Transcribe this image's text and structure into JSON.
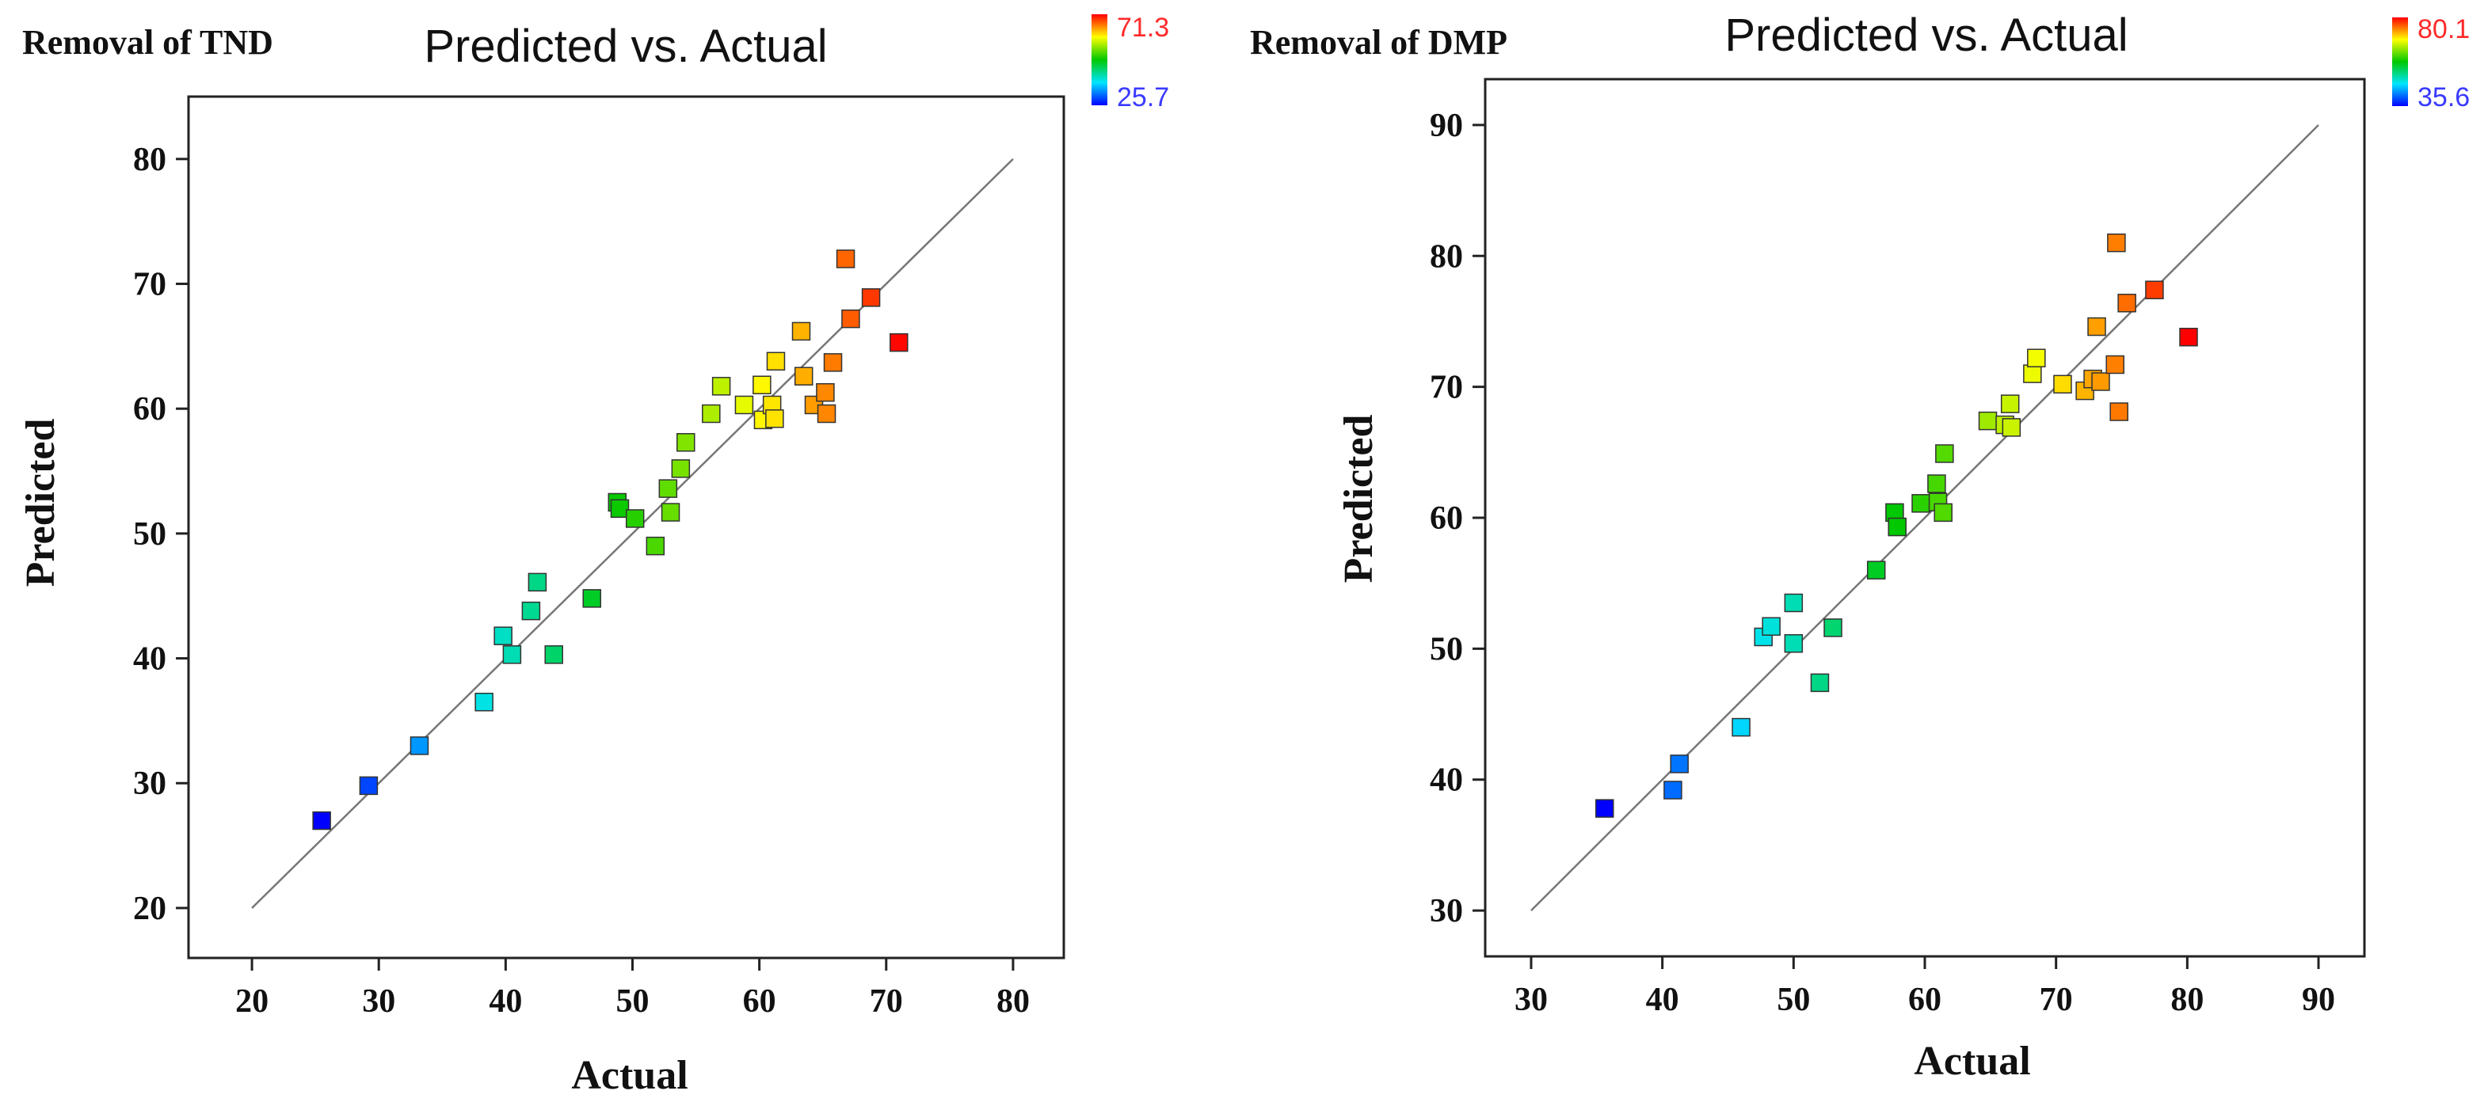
{
  "chart_data": [
    {
      "type": "scatter",
      "corner_label": "Removal of TND",
      "title": "Predicted vs. Actual",
      "xlabel": "Actual",
      "ylabel": "Predicted",
      "xlim": [
        15,
        84
      ],
      "ylim": [
        16,
        85
      ],
      "xticks": [
        20,
        30,
        40,
        50,
        60,
        70,
        80
      ],
      "yticks": [
        20,
        30,
        40,
        50,
        60,
        70,
        80
      ],
      "diagonal": [
        20,
        80
      ],
      "color_scale": {
        "min": 25.7,
        "max": 71.3,
        "min_label": "25.7",
        "max_label": "71.3"
      },
      "points": [
        [
          25.5,
          27
        ],
        [
          29.2,
          29.8
        ],
        [
          33.2,
          33.0
        ],
        [
          38.3,
          36.5
        ],
        [
          40.5,
          40.3
        ],
        [
          39.8,
          41.8
        ],
        [
          42.0,
          43.8
        ],
        [
          42.5,
          46.1
        ],
        [
          43.8,
          40.3
        ],
        [
          46.8,
          44.8
        ],
        [
          48.8,
          52.5
        ],
        [
          49.0,
          52.0
        ],
        [
          50.2,
          51.2
        ],
        [
          51.8,
          49.0
        ],
        [
          52.8,
          53.6
        ],
        [
          53.0,
          51.7
        ],
        [
          53.8,
          55.2
        ],
        [
          54.2,
          57.3
        ],
        [
          56.2,
          59.6
        ],
        [
          57.0,
          61.8
        ],
        [
          58.8,
          60.3
        ],
        [
          60.2,
          61.9
        ],
        [
          60.3,
          59.1
        ],
        [
          61.0,
          60.3
        ],
        [
          61.2,
          59.2
        ],
        [
          61.3,
          63.8
        ],
        [
          63.3,
          66.2
        ],
        [
          63.5,
          62.6
        ],
        [
          64.3,
          60.3
        ],
        [
          65.2,
          61.3
        ],
        [
          65.3,
          59.6
        ],
        [
          65.8,
          63.7
        ],
        [
          66.8,
          72.0
        ],
        [
          67.2,
          67.2
        ],
        [
          68.8,
          68.9
        ],
        [
          71.0,
          65.3
        ]
      ]
    },
    {
      "type": "scatter",
      "corner_label": "Removal of DMP",
      "title": "Predicted vs. Actual",
      "xlabel": "Actual",
      "ylabel": "Predicted",
      "xlim": [
        26.5,
        93.5
      ],
      "ylim": [
        26.5,
        93.5
      ],
      "xticks": [
        30,
        40,
        50,
        60,
        70,
        80,
        90
      ],
      "yticks": [
        30,
        40,
        50,
        60,
        70,
        80,
        90
      ],
      "diagonal": [
        30,
        90
      ],
      "color_scale": {
        "min": 35.6,
        "max": 80.1,
        "min_label": "35.6",
        "max_label": "80.1"
      },
      "points": [
        [
          35.6,
          37.8
        ],
        [
          40.8,
          39.2
        ],
        [
          41.3,
          41.2
        ],
        [
          46.0,
          44.0
        ],
        [
          47.7,
          50.9
        ],
        [
          48.3,
          51.7
        ],
        [
          50.0,
          53.5
        ],
        [
          50.0,
          50.4
        ],
        [
          52.0,
          47.4
        ],
        [
          53.0,
          51.6
        ],
        [
          56.3,
          56.0
        ],
        [
          57.7,
          60.4
        ],
        [
          57.9,
          59.3
        ],
        [
          59.7,
          61.1
        ],
        [
          60.9,
          62.6
        ],
        [
          61.0,
          61.2
        ],
        [
          61.4,
          60.4
        ],
        [
          61.5,
          64.9
        ],
        [
          64.8,
          67.4
        ],
        [
          66.1,
          67.1
        ],
        [
          66.5,
          68.7
        ],
        [
          66.6,
          66.9
        ],
        [
          68.2,
          71.0
        ],
        [
          68.5,
          72.2
        ],
        [
          70.5,
          70.2
        ],
        [
          72.2,
          69.7
        ],
        [
          72.8,
          70.6
        ],
        [
          73.1,
          74.6
        ],
        [
          73.4,
          70.4
        ],
        [
          74.5,
          71.7
        ],
        [
          74.6,
          81.0
        ],
        [
          74.8,
          68.1
        ],
        [
          75.4,
          76.4
        ],
        [
          77.5,
          77.4
        ],
        [
          80.1,
          73.8
        ]
      ]
    }
  ]
}
